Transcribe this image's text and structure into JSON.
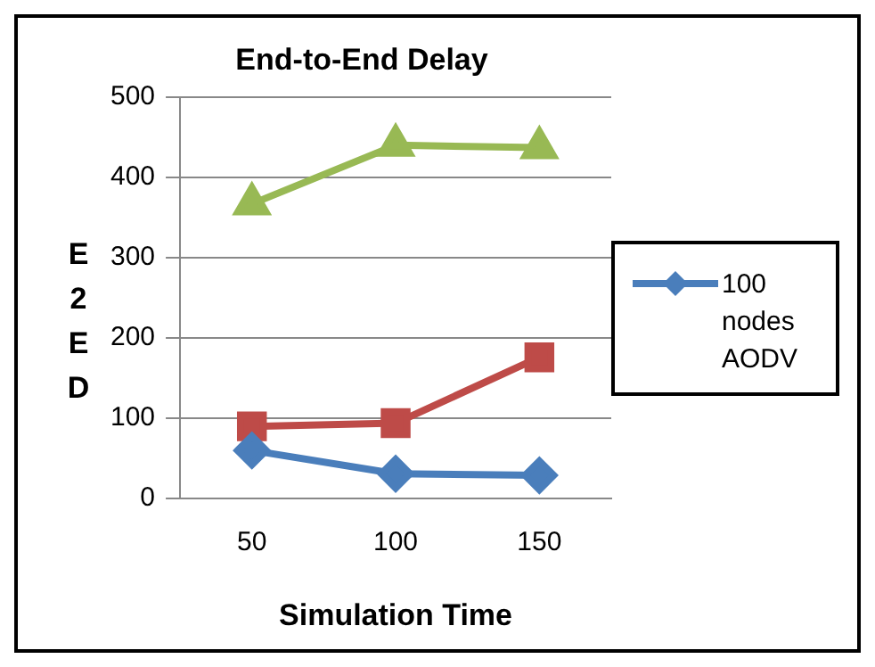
{
  "chart_data": {
    "type": "line",
    "title": "End-to-End Delay",
    "xlabel": "Simulation Time",
    "ylabel": "E2ED",
    "categories": [
      "50",
      "100",
      "150"
    ],
    "series": [
      {
        "name": "100 nodes AODV",
        "color": "#4a7ebb",
        "marker": "diamond",
        "values": [
          60,
          31,
          29
        ]
      },
      {
        "color": "#be4b48",
        "marker": "square",
        "values": [
          90,
          94,
          176
        ]
      },
      {
        "color": "#98b954",
        "marker": "triangle",
        "values": [
          367,
          440,
          437
        ]
      }
    ],
    "ylim": [
      0,
      500
    ],
    "yticks": [
      0,
      100,
      200,
      300,
      400,
      500
    ],
    "grid": "y",
    "legend": "right"
  }
}
